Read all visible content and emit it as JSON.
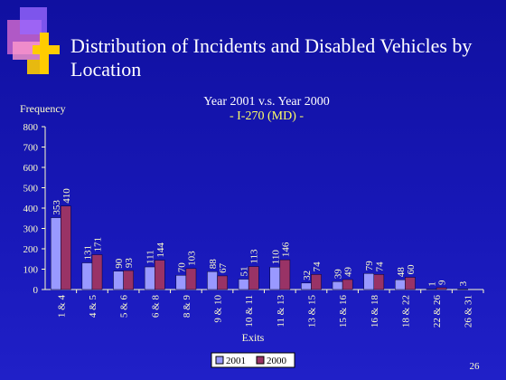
{
  "chart_data": {
    "type": "bar",
    "title": "Distribution of Incidents and Disabled Vehicles by Location",
    "subtitle": "Year 2001 v.s. Year 2000",
    "subtitle2": "- I-270 (MD) -",
    "y_label": "Frequency",
    "x_label": "Exits",
    "page_number": "26",
    "categories": [
      "1 & 4",
      "4 & 5",
      "5 & 6",
      "6 & 8",
      "8 & 9",
      "9 & 10",
      "10 & 11",
      "11 & 13",
      "13 & 15",
      "15 & 16",
      "16 & 18",
      "18 & 22",
      "22 & 26",
      "26 & 31"
    ],
    "series": [
      {
        "name": "2001",
        "color": "#9999ff",
        "values": [
          353,
          131,
          90,
          111,
          70,
          88,
          51,
          110,
          32,
          39,
          79,
          48,
          1,
          3
        ]
      },
      {
        "name": "2000",
        "color": "#993366",
        "values": [
          410,
          171,
          93,
          144,
          103,
          67,
          113,
          146,
          74,
          49,
          74,
          60,
          9,
          null
        ]
      }
    ],
    "ylim": [
      0,
      800
    ],
    "yticks": [
      0,
      100,
      200,
      300,
      400,
      500,
      600,
      700,
      800
    ],
    "legend": "bottom"
  }
}
